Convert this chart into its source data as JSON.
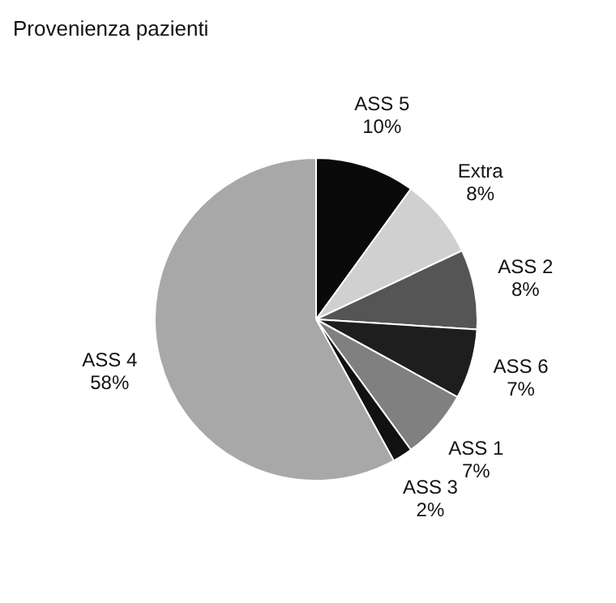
{
  "chart_data": {
    "type": "pie",
    "title": "Provenienza pazienti",
    "categories": [
      "ASS 5",
      "Extra",
      "ASS 2",
      "ASS 6",
      "ASS 1",
      "ASS 3",
      "ASS 4"
    ],
    "values": [
      10,
      8,
      8,
      7,
      7,
      2,
      58
    ],
    "colors": [
      "#0a0a0a",
      "#d0d0d0",
      "#555555",
      "#1e1e1e",
      "#808080",
      "#111111",
      "#a8a8a8"
    ],
    "value_labels": [
      "10%",
      "8%",
      "8%",
      "7%",
      "7%",
      "2%",
      "58%"
    ],
    "legend": false
  }
}
